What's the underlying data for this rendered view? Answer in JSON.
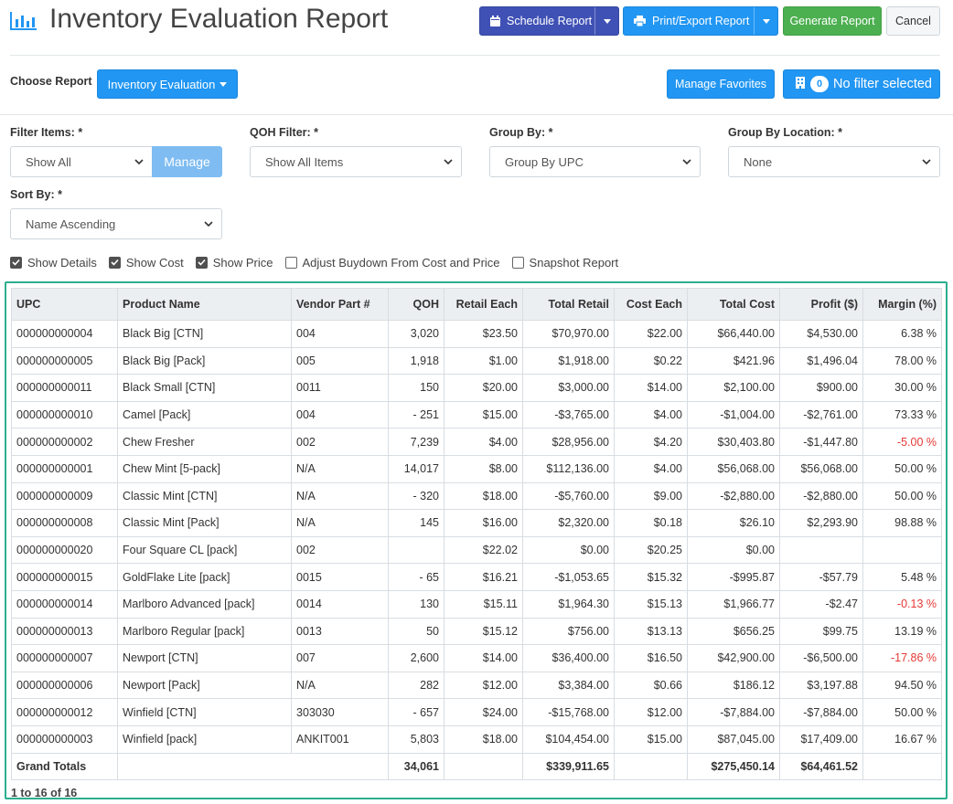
{
  "header": {
    "title": "Inventory Evaluation Report",
    "schedule_label": "Schedule Report",
    "print_label": "Print/Export Report",
    "generate_label": "Generate Report",
    "cancel_label": "Cancel"
  },
  "toolbar": {
    "choose_label": "Choose Report",
    "report_selected": "Inventory Evaluation",
    "favorites_label": "Manage Favorites",
    "filter_count": "0",
    "filter_label": "No filter selected"
  },
  "filters": {
    "filter_items_label": "Filter Items: *",
    "filter_items_value": "Show All",
    "manage_label": "Manage",
    "qoh_label": "QOH Filter: *",
    "qoh_value": "Show All Items",
    "group_by_label": "Group By: *",
    "group_by_value": "Group By UPC",
    "group_location_label": "Group By Location: *",
    "group_location_value": "None",
    "sort_label": "Sort By: *",
    "sort_value": "Name Ascending"
  },
  "options": [
    {
      "label": "Show Details",
      "checked": true
    },
    {
      "label": "Show Cost",
      "checked": true
    },
    {
      "label": "Show Price",
      "checked": true
    },
    {
      "label": "Adjust Buydown From Cost and Price",
      "checked": false
    },
    {
      "label": "Snapshot Report",
      "checked": false
    }
  ],
  "table": {
    "columns": [
      "UPC",
      "Product Name",
      "Vendor Part #",
      "QOH",
      "Retail Each",
      "Total Retail",
      "Cost Each",
      "Total Cost",
      "Profit ($)",
      "Margin (%)"
    ],
    "rows": [
      [
        "000000000004",
        "Black Big [CTN]",
        "004",
        "3,020",
        "$23.50",
        "$70,970.00",
        "$22.00",
        "$66,440.00",
        "$4,530.00",
        "6.38 %"
      ],
      [
        "000000000005",
        "Black Big [Pack]",
        "005",
        "1,918",
        "$1.00",
        "$1,918.00",
        "$0.22",
        "$421.96",
        "$1,496.04",
        "78.00 %"
      ],
      [
        "000000000011",
        "Black Small [CTN]",
        "0011",
        "150",
        "$20.00",
        "$3,000.00",
        "$14.00",
        "$2,100.00",
        "$900.00",
        "30.00 %"
      ],
      [
        "000000000010",
        "Camel [Pack]",
        "004",
        "- 251",
        "$15.00",
        "-$3,765.00",
        "$4.00",
        "-$1,004.00",
        "-$2,761.00",
        "73.33 %"
      ],
      [
        "000000000002",
        "Chew Fresher",
        "002",
        "7,239",
        "$4.00",
        "$28,956.00",
        "$4.20",
        "$30,403.80",
        "-$1,447.80",
        "-5.00 %"
      ],
      [
        "000000000001",
        "Chew Mint [5-pack]",
        "N/A",
        "14,017",
        "$8.00",
        "$112,136.00",
        "$4.00",
        "$56,068.00",
        "$56,068.00",
        "50.00 %"
      ],
      [
        "000000000009",
        "Classic Mint [CTN]",
        "N/A",
        "- 320",
        "$18.00",
        "-$5,760.00",
        "$9.00",
        "-$2,880.00",
        "-$2,880.00",
        "50.00 %"
      ],
      [
        "000000000008",
        "Classic Mint [Pack]",
        "N/A",
        "145",
        "$16.00",
        "$2,320.00",
        "$0.18",
        "$26.10",
        "$2,293.90",
        "98.88 %"
      ],
      [
        "000000000020",
        "Four Square CL [pack]",
        "002",
        "",
        "$22.02",
        "$0.00",
        "$20.25",
        "$0.00",
        "",
        ""
      ],
      [
        "000000000015",
        "GoldFlake Lite [pack]",
        "0015",
        "- 65",
        "$16.21",
        "-$1,053.65",
        "$15.32",
        "-$995.87",
        "-$57.79",
        "5.48 %"
      ],
      [
        "000000000014",
        "Marlboro Advanced [pack]",
        "0014",
        "130",
        "$15.11",
        "$1,964.30",
        "$15.13",
        "$1,966.77",
        "-$2.47",
        "-0.13 %"
      ],
      [
        "000000000013",
        "Marlboro Regular [pack]",
        "0013",
        "50",
        "$15.12",
        "$756.00",
        "$13.13",
        "$656.25",
        "$99.75",
        "13.19 %"
      ],
      [
        "000000000007",
        "Newport [CTN]",
        "007",
        "2,600",
        "$14.00",
        "$36,400.00",
        "$16.50",
        "$42,900.00",
        "-$6,500.00",
        "-17.86 %"
      ],
      [
        "000000000006",
        "Newport [Pack]",
        "N/A",
        "282",
        "$12.00",
        "$3,384.00",
        "$0.66",
        "$186.12",
        "$3,197.88",
        "94.50 %"
      ],
      [
        "000000000012",
        "Winfield [CTN]",
        "303030",
        "- 657",
        "$24.00",
        "-$15,768.00",
        "$12.00",
        "-$7,884.00",
        "-$7,884.00",
        "50.00 %"
      ],
      [
        "000000000003",
        "Winfield [pack]",
        "ANKIT001",
        "5,803",
        "$18.00",
        "$104,454.00",
        "$15.00",
        "$87,045.00",
        "$17,409.00",
        "16.67 %"
      ]
    ],
    "totals": [
      "Grand Totals",
      "",
      "",
      "34,061",
      "",
      "$339,911.65",
      "",
      "$275,450.14",
      "$64,461.52",
      ""
    ],
    "pager": "1 to 16 of 16"
  },
  "colors": {
    "schedule": "#3f51b5",
    "primary": "#2196f3",
    "success": "#4caf50",
    "negative": "#e53935",
    "frame": "#2bae8e"
  }
}
